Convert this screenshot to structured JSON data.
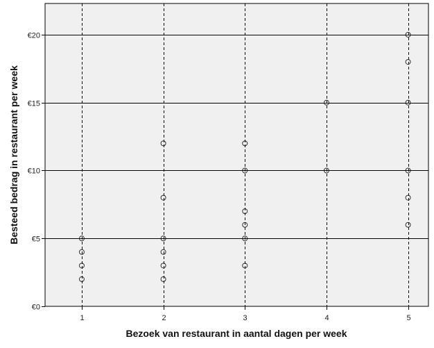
{
  "chart_data": {
    "type": "scatter",
    "title": "",
    "xlabel": "Bezoek van restaurant in aantal dagen per week",
    "ylabel": "Besteed bedrag in restaurant per week",
    "xlim": [
      0.55,
      5.25
    ],
    "ylim": [
      0,
      22.3
    ],
    "x_ticks": [
      1,
      2,
      3,
      4,
      5
    ],
    "x_tick_labels": [
      "1",
      "2",
      "3",
      "4",
      "5"
    ],
    "y_ticks": [
      0,
      5,
      10,
      15,
      20
    ],
    "y_tick_labels": [
      "€0",
      "€5",
      "€10",
      "€15",
      "€20"
    ],
    "grid": {
      "horizontal": "solid at y ticks",
      "vertical": "dashed at x ticks"
    },
    "background": "#f0f0f0",
    "marker_color": "#000000",
    "series": [
      {
        "points": [
          {
            "x": 1,
            "y": 2
          },
          {
            "x": 1,
            "y": 3
          },
          {
            "x": 1,
            "y": 4
          },
          {
            "x": 1,
            "y": 5
          },
          {
            "x": 2,
            "y": 2
          },
          {
            "x": 2,
            "y": 3
          },
          {
            "x": 2,
            "y": 4
          },
          {
            "x": 2,
            "y": 5
          },
          {
            "x": 2,
            "y": 8
          },
          {
            "x": 2,
            "y": 12
          },
          {
            "x": 3,
            "y": 3
          },
          {
            "x": 3,
            "y": 5
          },
          {
            "x": 3,
            "y": 6
          },
          {
            "x": 3,
            "y": 7
          },
          {
            "x": 3,
            "y": 10
          },
          {
            "x": 3,
            "y": 12
          },
          {
            "x": 4,
            "y": 10
          },
          {
            "x": 4,
            "y": 15
          },
          {
            "x": 5,
            "y": 6
          },
          {
            "x": 5,
            "y": 8
          },
          {
            "x": 5,
            "y": 10
          },
          {
            "x": 5,
            "y": 15
          },
          {
            "x": 5,
            "y": 18
          },
          {
            "x": 5,
            "y": 20
          }
        ]
      }
    ]
  }
}
